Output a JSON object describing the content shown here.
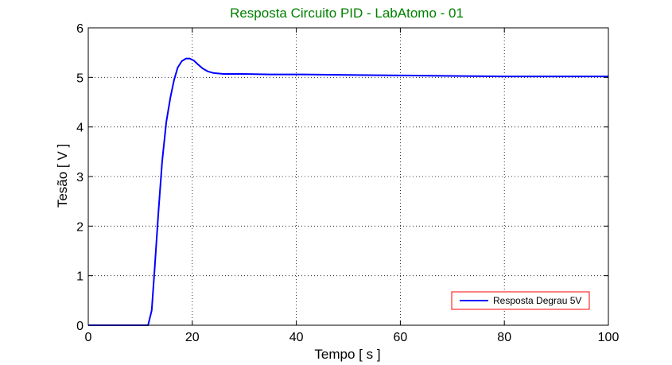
{
  "chart_data": {
    "type": "line",
    "title": "Resposta Circuito PID - LabAtomo - 01",
    "xlabel": "Tempo [ s ]",
    "ylabel": "Tesão [ V ]",
    "xlim": [
      0,
      100
    ],
    "ylim": [
      0,
      6
    ],
    "xticks": [
      0,
      20,
      40,
      60,
      80,
      100
    ],
    "yticks": [
      0,
      1,
      2,
      3,
      4,
      5,
      6
    ],
    "grid": true,
    "legend_position": "bottom-right",
    "series": [
      {
        "name": "Resposta Degrau 5V",
        "color": "#0000ff",
        "x": [
          0,
          11.5,
          12.2,
          12.8,
          13.5,
          14.2,
          15,
          15.8,
          16.5,
          17.2,
          18,
          18.8,
          19.5,
          20.3,
          21,
          22,
          23,
          24,
          25,
          26,
          28,
          30,
          35,
          40,
          50,
          60,
          70,
          80,
          90,
          100
        ],
        "y": [
          0,
          0,
          0.3,
          1.2,
          2.3,
          3.3,
          4.1,
          4.6,
          4.95,
          5.2,
          5.33,
          5.38,
          5.38,
          5.34,
          5.27,
          5.18,
          5.12,
          5.09,
          5.08,
          5.07,
          5.07,
          5.07,
          5.06,
          5.06,
          5.05,
          5.04,
          5.03,
          5.02,
          5.02,
          5.02
        ]
      }
    ]
  },
  "colors": {
    "title": "#008000",
    "line": "#0000ff",
    "legend_border": "#ff0000",
    "grid": "#000000"
  }
}
